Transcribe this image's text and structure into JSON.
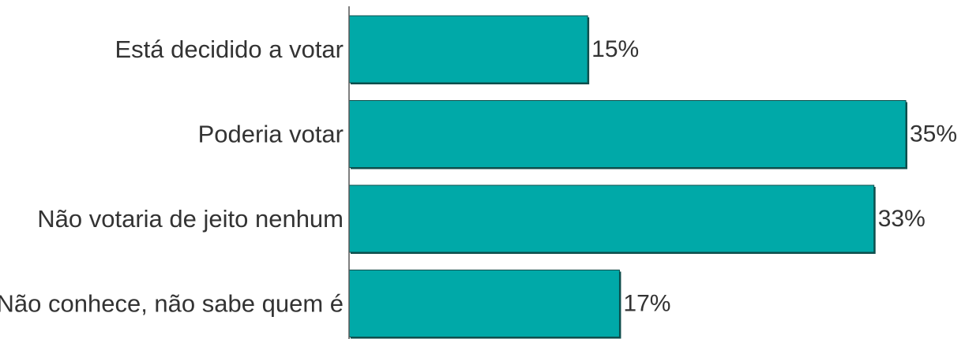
{
  "chart_data": {
    "type": "bar",
    "orientation": "horizontal",
    "categories": [
      "Está decidido a votar",
      "Poderia votar",
      "Não votaria de jeito nenhum",
      "Não conhece, não sabe quem é"
    ],
    "values": [
      15,
      35,
      33,
      17
    ],
    "value_labels": [
      "15%",
      "35%",
      "33%",
      "17%"
    ],
    "unit": "%",
    "xlim": [
      0,
      35
    ],
    "grid": false,
    "legend": "none",
    "colors": {
      "bar_fill": "#00A9A8",
      "bar_shadow": "#0E4E4C",
      "axis": "#555555",
      "text": "#333333"
    }
  }
}
